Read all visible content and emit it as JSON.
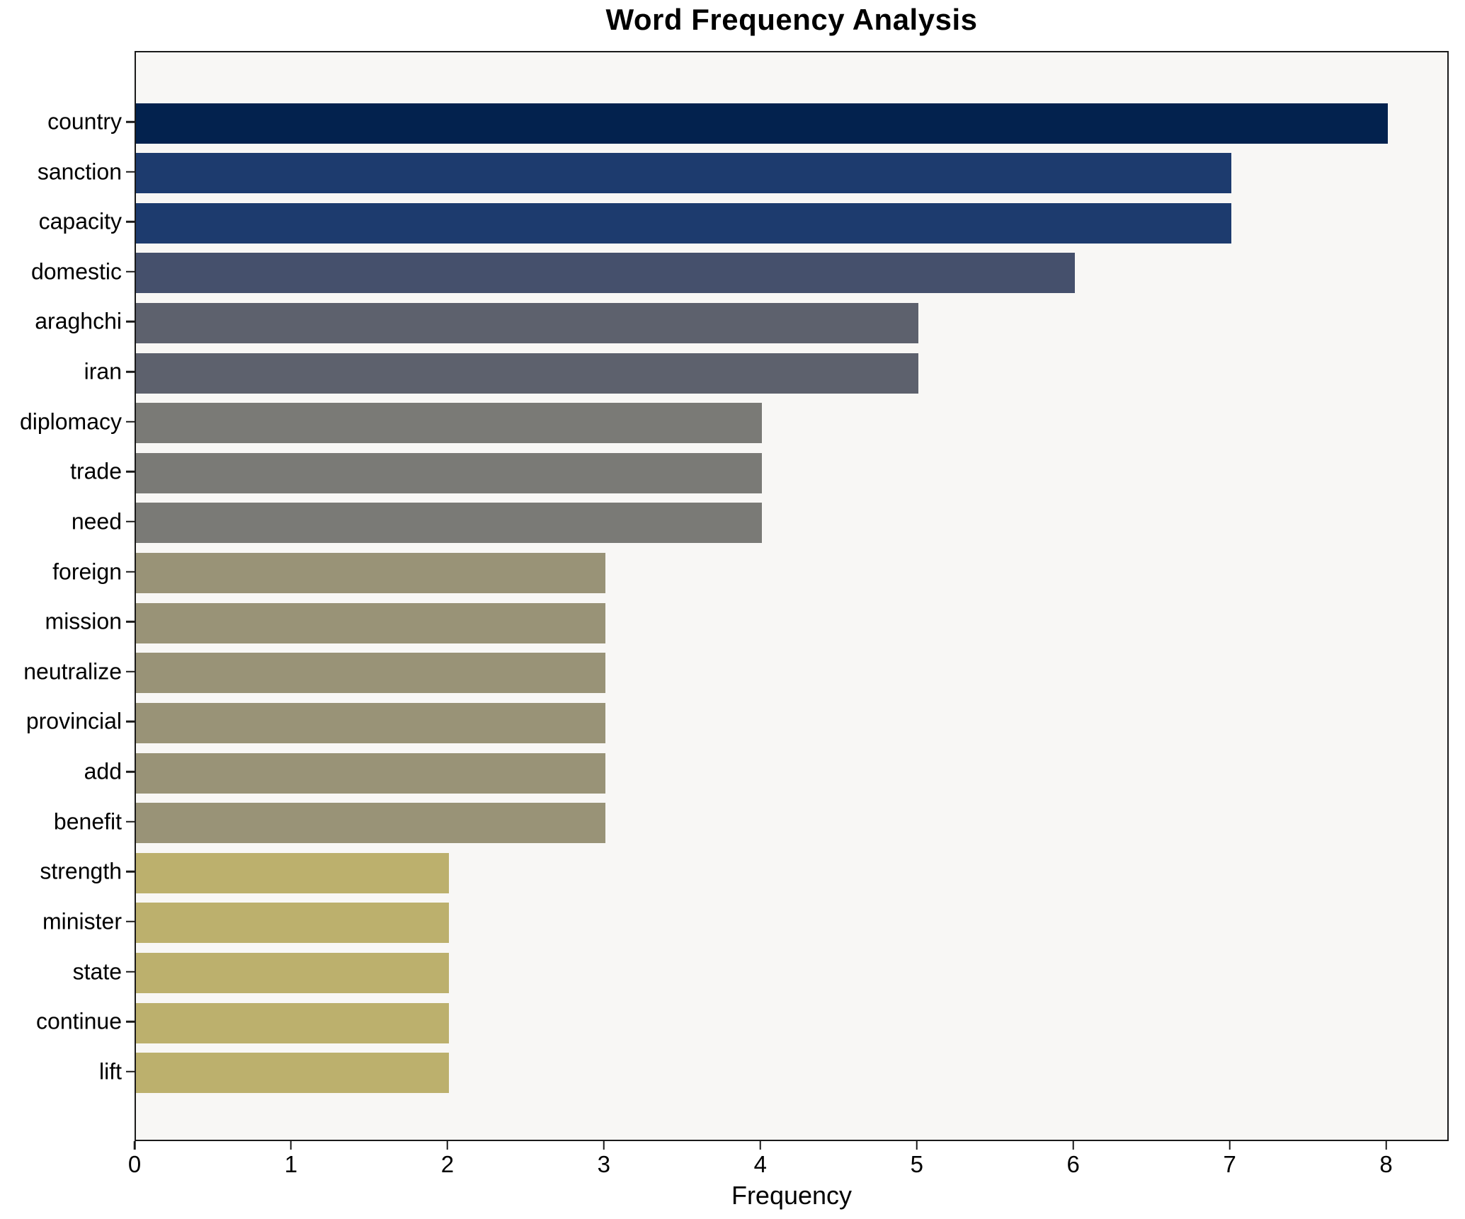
{
  "title": "Word Frequency Analysis",
  "chart_data": {
    "type": "bar",
    "orientation": "horizontal",
    "title": "Word Frequency Analysis",
    "xlabel": "Frequency",
    "ylabel": "",
    "categories": [
      "country",
      "sanction",
      "capacity",
      "domestic",
      "araghchi",
      "iran",
      "diplomacy",
      "trade",
      "need",
      "foreign",
      "mission",
      "neutralize",
      "provincial",
      "add",
      "benefit",
      "strength",
      "minister",
      "state",
      "continue",
      "lift"
    ],
    "values": [
      8,
      7,
      7,
      6,
      5,
      5,
      4,
      4,
      4,
      3,
      3,
      3,
      3,
      3,
      3,
      2,
      2,
      2,
      2,
      2
    ],
    "bar_colors": [
      "#03224e",
      "#1d3b6e",
      "#1d3b6e",
      "#45506c",
      "#5d616d",
      "#5d616d",
      "#7a7a76",
      "#7a7a76",
      "#7a7a76",
      "#999377",
      "#999377",
      "#999377",
      "#999377",
      "#999377",
      "#999377",
      "#bcb06d",
      "#bcb06d",
      "#bcb06d",
      "#bcb06d",
      "#bcb06d"
    ],
    "value_color_map": {
      "8": "#03224e",
      "7": "#1d3b6e",
      "6": "#45506c",
      "5": "#5d616d",
      "4": "#7a7a76",
      "3": "#999377",
      "2": "#bcb06d"
    },
    "x_ticks": [
      0,
      1,
      2,
      3,
      4,
      5,
      6,
      7,
      8
    ],
    "xlim": [
      0,
      8.4
    ],
    "grid": false,
    "legend": null,
    "colormap": "cividis"
  },
  "colors": {
    "figure_bg": "#ffffff",
    "plot_bg": "#f8f7f5",
    "spine": "#1a1a1a",
    "text": "#000000"
  }
}
